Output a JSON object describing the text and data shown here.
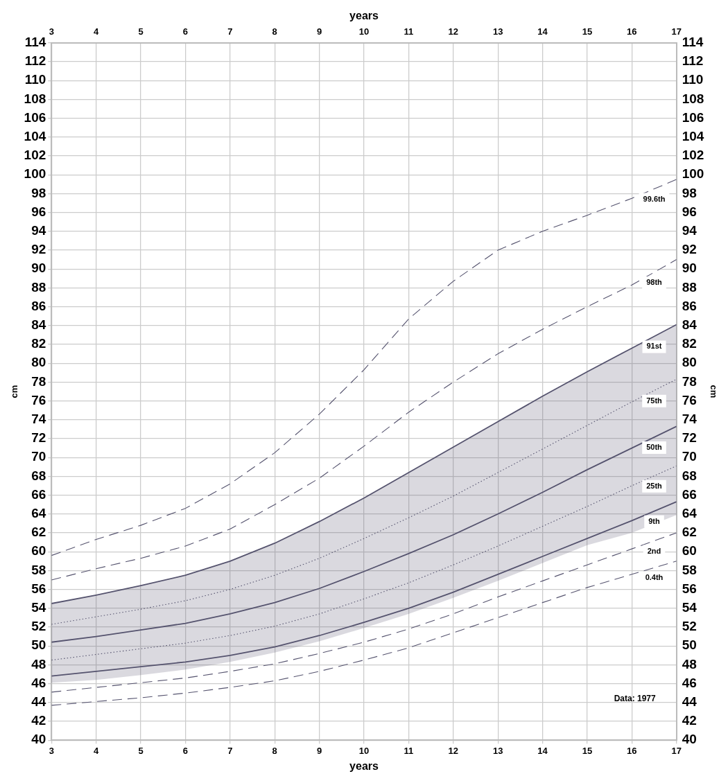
{
  "chart_data": {
    "type": "line",
    "xlabel": "years",
    "x2label": "years",
    "ylabel": "cm",
    "y2label": "cm",
    "x": [
      3,
      4,
      5,
      6,
      7,
      8,
      9,
      10,
      11,
      12,
      13,
      14,
      15,
      16,
      17
    ],
    "xlim": [
      3,
      17
    ],
    "xticks": [
      3,
      4,
      5,
      6,
      7,
      8,
      9,
      10,
      11,
      12,
      13,
      14,
      15,
      16,
      17
    ],
    "x2lim": [
      3,
      17
    ],
    "x2ticks": [
      3,
      4,
      5,
      6,
      7,
      8,
      9,
      10,
      11,
      12,
      13,
      14,
      15,
      16,
      17
    ],
    "ylim": [
      40,
      114
    ],
    "yticks": [
      40,
      42,
      44,
      46,
      48,
      50,
      52,
      54,
      56,
      58,
      60,
      62,
      64,
      66,
      68,
      70,
      72,
      74,
      76,
      78,
      80,
      82,
      84,
      86,
      88,
      90,
      92,
      94,
      96,
      98,
      100,
      102,
      104,
      106,
      108,
      110,
      112,
      114
    ],
    "y2lim": [
      40,
      114
    ],
    "y2ticks": [
      40,
      42,
      44,
      46,
      48,
      50,
      52,
      54,
      56,
      58,
      60,
      62,
      64,
      66,
      68,
      70,
      72,
      74,
      76,
      78,
      80,
      82,
      84,
      86,
      88,
      90,
      92,
      94,
      96,
      98,
      100,
      102,
      104,
      106,
      108,
      110,
      112,
      114
    ],
    "grid": true,
    "legend": false,
    "marker": "none",
    "series": [
      {
        "name": "99.6th",
        "color": "#55536e",
        "line_style": "dashed",
        "values": [
          59.6,
          61.3,
          62.8,
          64.6,
          67.2,
          70.5,
          74.6,
          79.3,
          84.7,
          88.7,
          92.0,
          94.0,
          95.7,
          97.5,
          99.5
        ]
      },
      {
        "name": "98th",
        "color": "#55536e",
        "line_style": "dashed",
        "values": [
          57.0,
          58.2,
          59.3,
          60.6,
          62.4,
          65.0,
          67.8,
          71.2,
          74.8,
          78.0,
          81.0,
          83.6,
          86.0,
          88.3,
          91.0
        ]
      },
      {
        "name": "91st",
        "color": "#55536e",
        "line_style": "solid",
        "values": [
          54.5,
          55.4,
          56.4,
          57.5,
          59.0,
          60.9,
          63.2,
          65.7,
          68.4,
          71.1,
          73.8,
          76.5,
          79.1,
          81.6,
          84.1
        ],
        "lower": [
          46.1,
          46.4,
          46.9,
          47.5,
          48.3,
          49.3,
          50.5,
          51.9,
          53.4,
          55.1,
          56.9,
          58.8,
          60.7,
          62.0,
          63.9
        ],
        "upper": [
          54.5,
          55.4,
          56.4,
          57.5,
          59.0,
          60.9,
          63.2,
          65.7,
          68.4,
          71.1,
          73.8,
          76.5,
          79.1,
          81.6,
          84.1
        ]
      },
      {
        "name": "75th",
        "color": "#55536e",
        "line_style": "dotted",
        "values": [
          52.3,
          53.1,
          53.9,
          54.8,
          56.0,
          57.5,
          59.3,
          61.4,
          63.6,
          65.9,
          68.4,
          70.9,
          73.4,
          75.9,
          78.3
        ]
      },
      {
        "name": "50th",
        "color": "#55536e",
        "line_style": "solid",
        "values": [
          50.4,
          51.0,
          51.7,
          52.4,
          53.4,
          54.6,
          56.1,
          57.9,
          59.8,
          61.8,
          64.0,
          66.3,
          68.7,
          71.0,
          73.3
        ]
      },
      {
        "name": "25th",
        "color": "#55536e",
        "line_style": "dotted",
        "values": [
          48.5,
          49.1,
          49.7,
          50.3,
          51.1,
          52.1,
          53.4,
          55.0,
          56.7,
          58.6,
          60.6,
          62.7,
          64.8,
          67.0,
          69.1
        ]
      },
      {
        "name": "9th",
        "color": "#55536e",
        "line_style": "solid",
        "values": [
          46.8,
          47.3,
          47.8,
          48.3,
          49.0,
          49.9,
          51.1,
          52.5,
          54.0,
          55.7,
          57.6,
          59.5,
          61.4,
          63.3,
          65.3
        ]
      },
      {
        "name": "2nd",
        "color": "#55536e",
        "line_style": "dashed",
        "values": [
          45.1,
          45.6,
          46.1,
          46.6,
          47.3,
          48.1,
          49.2,
          50.4,
          51.8,
          53.4,
          55.2,
          56.9,
          58.6,
          60.3,
          62.0
        ]
      },
      {
        "name": "0.4th",
        "color": "#55536e",
        "line_style": "dashed",
        "values": [
          43.7,
          44.1,
          44.5,
          45.0,
          45.6,
          46.3,
          47.3,
          48.5,
          49.8,
          51.4,
          53.0,
          54.6,
          56.2,
          57.6,
          59.0
        ]
      }
    ],
    "annotations": [
      "Data: 1977"
    ]
  }
}
